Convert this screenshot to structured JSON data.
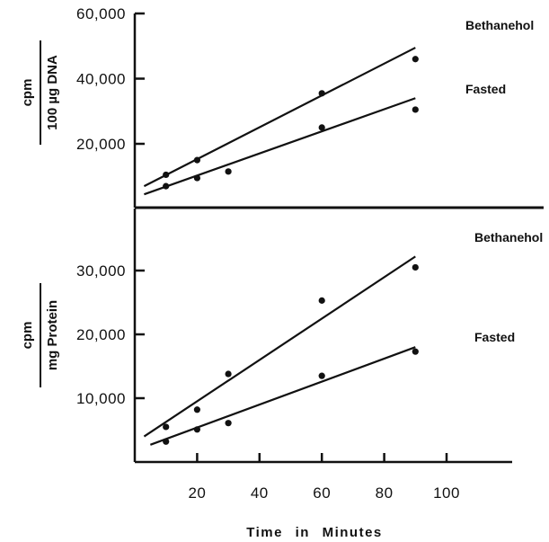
{
  "chart_data": [
    {
      "type": "scatter",
      "panel": "top",
      "ylabel_num": "cpm",
      "ylabel_den": "100 µg DNA",
      "yticks": [
        20000,
        40000,
        60000
      ],
      "ytick_labels": [
        "20,000",
        "40,000",
        "60,000"
      ],
      "ylim": [
        -20000,
        60000
      ],
      "xlim": [
        0,
        130
      ],
      "series": [
        {
          "name": "Bethanehol",
          "x": [
            10,
            20,
            60,
            90
          ],
          "y": [
            10500,
            15000,
            35500,
            46000
          ],
          "fit": [
            [
              3,
              7000
            ],
            [
              90,
              49500
            ]
          ]
        },
        {
          "name": "Fasted",
          "x": [
            10,
            20,
            30,
            60,
            90
          ],
          "y": [
            7000,
            9500,
            11500,
            25000,
            30500
          ],
          "fit": [
            [
              3,
              4500
            ],
            [
              90,
              34000
            ]
          ]
        }
      ]
    },
    {
      "type": "scatter",
      "panel": "bottom",
      "ylabel_num": "cpm",
      "ylabel_den": "mg Protein",
      "yticks": [
        10000,
        20000,
        30000
      ],
      "ytick_labels": [
        "10,000",
        "20,000",
        "30,000"
      ],
      "ylim": [
        -10000,
        38500
      ],
      "xlim": [
        0,
        130
      ],
      "xticks": [
        20,
        40,
        60,
        80,
        100
      ],
      "xtick_labels": [
        "20",
        "40",
        "60",
        "80",
        "100"
      ],
      "xlabel": "Time in Minutes",
      "series": [
        {
          "name": "Bethanehol",
          "x": [
            10,
            20,
            30,
            60,
            90
          ],
          "y": [
            5500,
            8200,
            13800,
            25300,
            30500
          ],
          "fit": [
            [
              3,
              4000
            ],
            [
              90,
              32200
            ]
          ]
        },
        {
          "name": "Fasted",
          "x": [
            10,
            20,
            30,
            60,
            90
          ],
          "y": [
            3200,
            5100,
            6100,
            13500,
            17300
          ],
          "fit": [
            [
              5,
              2700
            ],
            [
              90,
              18000
            ]
          ]
        }
      ]
    }
  ]
}
